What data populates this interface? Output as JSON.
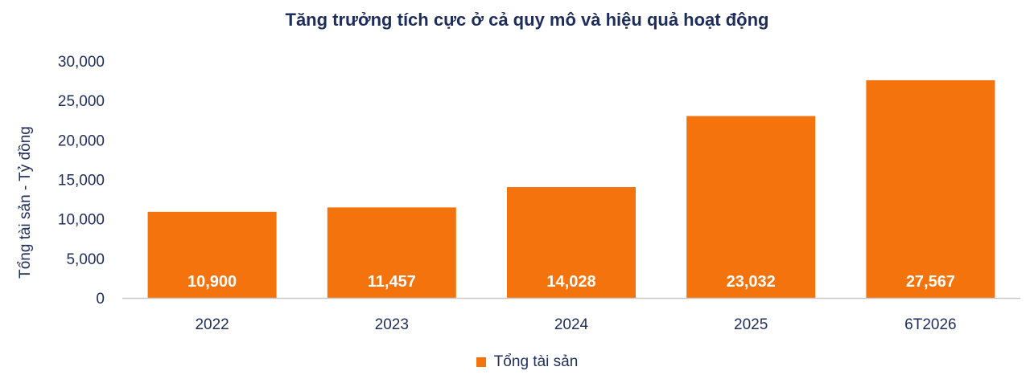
{
  "chart_data": {
    "type": "bar",
    "title": "Tăng trưởng tích cực ở cả quy mô và hiệu quả hoạt động",
    "xlabel": "",
    "ylabel": "Tổng tài sản - Tỷ đồng",
    "categories": [
      "2022",
      "2023",
      "2024",
      "2025",
      "6T2026"
    ],
    "series": [
      {
        "name": "Tổng tài sản",
        "values": [
          10900,
          11457,
          14028,
          23032,
          27567
        ]
      }
    ],
    "data_labels": [
      "10,900",
      "11,457",
      "14,028",
      "23,032",
      "27,567"
    ],
    "ylim": [
      0,
      30000
    ],
    "yticks": [
      0,
      5000,
      10000,
      15000,
      20000,
      25000,
      30000
    ],
    "ytick_labels": [
      "0",
      "5,000",
      "10,000",
      "15,000",
      "20,000",
      "25,000",
      "30,000"
    ],
    "grid": false,
    "legend_position": "bottom",
    "colors": {
      "bar": "#f5730c",
      "text": "#1f2d5a",
      "axis": "#c8c8c8",
      "data_label": "#ffffff"
    }
  }
}
